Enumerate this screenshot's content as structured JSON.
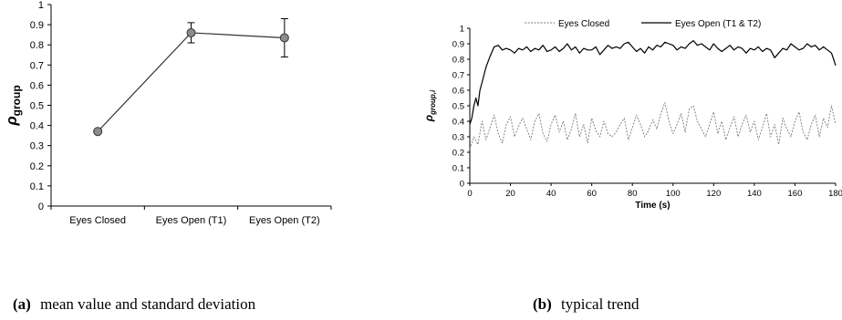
{
  "chart_data": [
    {
      "type": "line",
      "panel": "a",
      "categories": [
        "Eyes Closed",
        "Eyes Open (T1)",
        "Eyes Open (T2)"
      ],
      "values": [
        0.37,
        0.86,
        0.835
      ],
      "errors": [
        null,
        0.05,
        0.095
      ],
      "ylabel": "ρgroup",
      "ylabel_main": "ρ",
      "ylabel_sub": "group",
      "ylim": [
        0,
        1
      ],
      "yticks": [
        "0",
        "0.1",
        "0.2",
        "0.3",
        "0.4",
        "0.5",
        "0.6",
        "0.7",
        "0.8",
        "0.9",
        "1"
      ],
      "marker_color": "#8c8c8c",
      "line_color": "#333333",
      "caption_label": "(a)",
      "caption_text": "mean value and standard deviation"
    },
    {
      "type": "line",
      "panel": "b",
      "xlabel": "Time (s)",
      "ylabel": "ρgroup,i",
      "ylabel_main": "ρ",
      "ylabel_sub": "group,i",
      "xlim": [
        0,
        180
      ],
      "ylim": [
        0,
        1
      ],
      "xticks": [
        "0",
        "20",
        "40",
        "60",
        "80",
        "100",
        "120",
        "140",
        "160",
        "180"
      ],
      "yticks": [
        "0",
        "0.1",
        "0.2",
        "0.3",
        "0.4",
        "0.5",
        "0.6",
        "0.7",
        "0.8",
        "0.9",
        "1"
      ],
      "series": [
        {
          "name": "Eyes Closed",
          "style": "dashed",
          "color": "#7a7a7a",
          "x": [
            0,
            2,
            4,
            6,
            8,
            10,
            12,
            14,
            16,
            18,
            20,
            22,
            24,
            26,
            28,
            30,
            32,
            34,
            36,
            38,
            40,
            42,
            44,
            46,
            48,
            50,
            52,
            54,
            56,
            58,
            60,
            62,
            64,
            66,
            68,
            70,
            72,
            74,
            76,
            78,
            80,
            82,
            84,
            86,
            88,
            90,
            92,
            94,
            96,
            98,
            100,
            102,
            104,
            106,
            108,
            110,
            112,
            114,
            116,
            118,
            120,
            122,
            124,
            126,
            128,
            130,
            132,
            134,
            136,
            138,
            140,
            142,
            144,
            146,
            148,
            150,
            152,
            154,
            156,
            158,
            160,
            162,
            164,
            166,
            168,
            170,
            172,
            174,
            176,
            178,
            180
          ],
          "y": [
            0.22,
            0.3,
            0.25,
            0.4,
            0.28,
            0.36,
            0.44,
            0.32,
            0.26,
            0.38,
            0.43,
            0.3,
            0.37,
            0.42,
            0.35,
            0.28,
            0.4,
            0.45,
            0.32,
            0.27,
            0.38,
            0.44,
            0.33,
            0.4,
            0.28,
            0.35,
            0.45,
            0.3,
            0.38,
            0.26,
            0.42,
            0.34,
            0.3,
            0.4,
            0.32,
            0.3,
            0.33,
            0.38,
            0.42,
            0.28,
            0.36,
            0.44,
            0.38,
            0.3,
            0.34,
            0.41,
            0.35,
            0.45,
            0.52,
            0.4,
            0.32,
            0.38,
            0.45,
            0.33,
            0.48,
            0.5,
            0.4,
            0.35,
            0.3,
            0.38,
            0.46,
            0.32,
            0.4,
            0.28,
            0.36,
            0.43,
            0.3,
            0.38,
            0.44,
            0.33,
            0.4,
            0.28,
            0.36,
            0.45,
            0.3,
            0.38,
            0.25,
            0.42,
            0.35,
            0.3,
            0.4,
            0.46,
            0.33,
            0.28,
            0.38,
            0.44,
            0.3,
            0.42,
            0.36,
            0.5,
            0.38
          ]
        },
        {
          "name": "Eyes Open (T1 & T2)",
          "style": "solid",
          "color": "#000000",
          "x": [
            0,
            1,
            2,
            3,
            4,
            5,
            6,
            7,
            8,
            10,
            12,
            14,
            16,
            18,
            20,
            22,
            24,
            26,
            28,
            30,
            32,
            34,
            36,
            38,
            40,
            42,
            44,
            46,
            48,
            50,
            52,
            54,
            56,
            58,
            60,
            62,
            64,
            66,
            68,
            70,
            72,
            74,
            76,
            78,
            80,
            82,
            84,
            86,
            88,
            90,
            92,
            94,
            96,
            98,
            100,
            102,
            104,
            106,
            108,
            110,
            112,
            114,
            116,
            118,
            120,
            122,
            124,
            126,
            128,
            130,
            132,
            134,
            136,
            138,
            140,
            142,
            144,
            146,
            148,
            150,
            152,
            154,
            156,
            158,
            160,
            162,
            164,
            166,
            168,
            170,
            172,
            174,
            176,
            178,
            179,
            180
          ],
          "y": [
            0.38,
            0.42,
            0.5,
            0.55,
            0.5,
            0.6,
            0.65,
            0.7,
            0.75,
            0.82,
            0.88,
            0.89,
            0.86,
            0.87,
            0.86,
            0.84,
            0.87,
            0.86,
            0.88,
            0.85,
            0.87,
            0.86,
            0.89,
            0.85,
            0.86,
            0.88,
            0.85,
            0.87,
            0.9,
            0.86,
            0.88,
            0.84,
            0.87,
            0.86,
            0.86,
            0.88,
            0.83,
            0.86,
            0.89,
            0.87,
            0.88,
            0.87,
            0.9,
            0.91,
            0.88,
            0.85,
            0.87,
            0.84,
            0.88,
            0.86,
            0.89,
            0.88,
            0.91,
            0.9,
            0.89,
            0.86,
            0.88,
            0.87,
            0.9,
            0.92,
            0.89,
            0.9,
            0.88,
            0.86,
            0.9,
            0.87,
            0.85,
            0.87,
            0.89,
            0.86,
            0.88,
            0.87,
            0.84,
            0.87,
            0.86,
            0.88,
            0.85,
            0.87,
            0.86,
            0.81,
            0.84,
            0.87,
            0.86,
            0.9,
            0.88,
            0.86,
            0.87,
            0.9,
            0.88,
            0.89,
            0.86,
            0.88,
            0.86,
            0.84,
            0.8,
            0.76
          ]
        }
      ],
      "legend": "top",
      "caption_label": "(b)",
      "caption_text": "typical trend"
    }
  ]
}
